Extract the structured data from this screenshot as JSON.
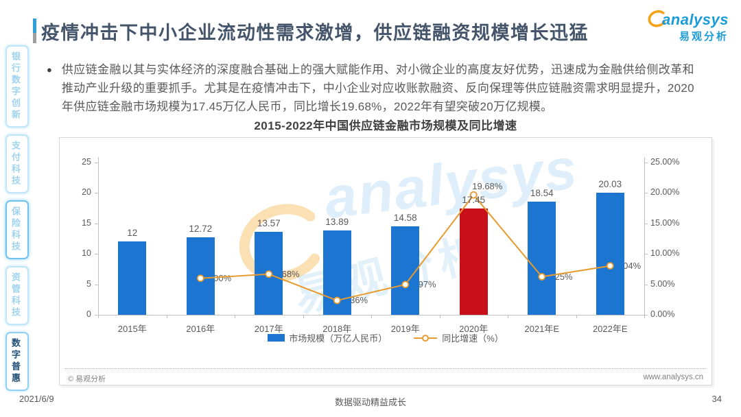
{
  "header": {
    "title": "疫情冲击下中小企业流动性需求激增，供应链融资规模增长迅猛",
    "logo_text": "analysys",
    "logo_subtext": "易观分析"
  },
  "sidebar": {
    "items": [
      {
        "label": "银行数字创新",
        "state": "normal"
      },
      {
        "label": "支付科技",
        "state": "normal"
      },
      {
        "label": "保险科技",
        "state": "highlighted"
      },
      {
        "label": "资管科技",
        "state": "normal"
      },
      {
        "label": "数字普惠",
        "state": "active"
      }
    ]
  },
  "intro": {
    "bullet": "●",
    "text": "供应链金融以其与实体经济的深度融合基础上的强大赋能作用、对小微企业的高度友好优势，迅速成为金融供给侧改革和推动产业升级的重要抓手。尤其是在疫情冲击下，中小企业对应收账款融资、反向保理等供应链融资需求明显提升，2020年供应链金融市场规模为17.45万亿人民币，同比增长19.68%，2022年有望突破20万亿规模。"
  },
  "chart_data": {
    "type": "bar+line",
    "title": "2015-2022年中国供应链金融市场规模及同比增速",
    "categories": [
      "2015年",
      "2016年",
      "2017年",
      "2018年",
      "2019年",
      "2020年",
      "2021年E",
      "2022年E"
    ],
    "series": [
      {
        "name": "市场规模（万亿人民币）",
        "type": "bar",
        "values": [
          12,
          12.72,
          13.57,
          13.89,
          14.58,
          17.45,
          18.54,
          20.03
        ],
        "labels": [
          "12",
          "12.72",
          "13.57",
          "13.89",
          "14.58",
          "17.45",
          "18.54",
          "20.03"
        ],
        "highlight_index": 5
      },
      {
        "name": "同比增速（%）",
        "type": "line",
        "values": [
          null,
          6.0,
          6.68,
          2.36,
          4.97,
          19.68,
          6.25,
          8.04
        ],
        "labels": [
          "",
          "6.00%",
          "6.68%",
          "2.36%",
          "4.97%",
          "19.68%",
          "6.25%",
          "8.04%"
        ]
      }
    ],
    "left_axis": {
      "ticks": [
        "0",
        "5",
        "10",
        "15",
        "20",
        "25"
      ],
      "min": 0,
      "max": 25
    },
    "right_axis": {
      "ticks": [
        "0.00%",
        "5.00%",
        "10.00%",
        "15.00%",
        "20.00%",
        "25.00%"
      ],
      "min": 0,
      "max": 25
    },
    "ylim": [
      0,
      25
    ],
    "grid": false,
    "legend_position": "bottom",
    "colors": {
      "bar": "#1B75D1",
      "bar_highlight": "#C8101B",
      "line": "#E79A2E"
    }
  },
  "chart_footer": {
    "copyright": "© 易观分析",
    "website": "www.analysys.cn"
  },
  "watermark": {
    "text": "analysys",
    "subtext": "易观分析"
  },
  "footer": {
    "date": "2021/6/9",
    "slogan": "数据驱动精益成长",
    "page": "34"
  }
}
